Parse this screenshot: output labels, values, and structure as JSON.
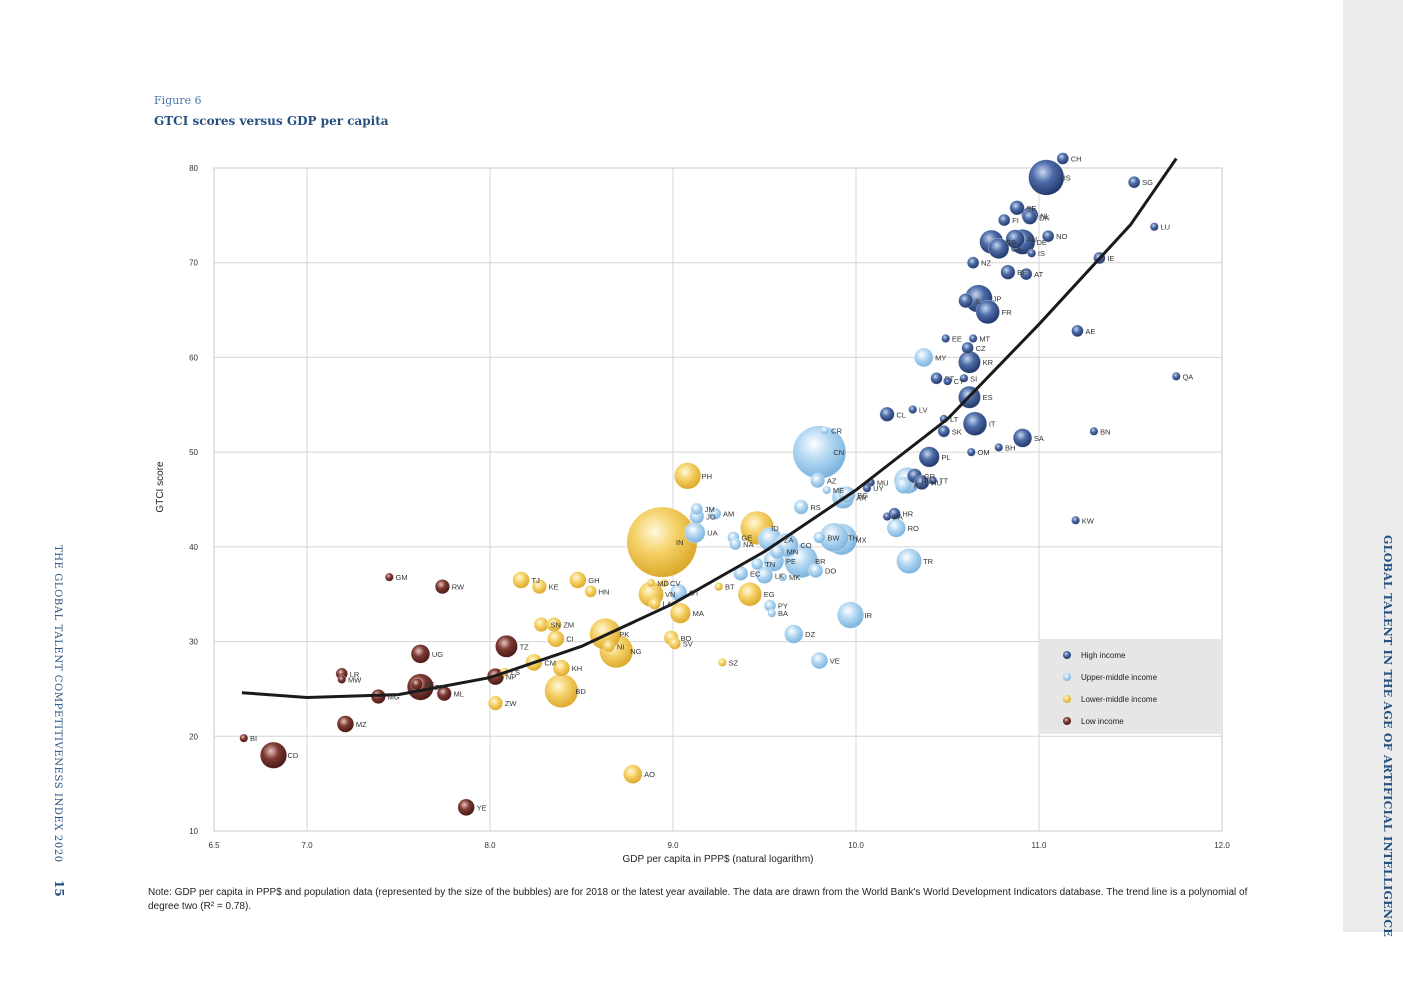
{
  "figure": {
    "label": "Figure 6",
    "title": "GTCI scores versus GDP per capita"
  },
  "note": "Note: GDP per capita in PPP$ and population data (represented by the size of the bubbles) are for 2018 or the latest year available. The data are drawn from the World Bank's World Development Indicators database. The trend line is a polynomial of degree two (R² = 0.78).",
  "side_title": "GLOBAL TALENT IN THE AGE OF ARTIFICIAL INTELLIGENCE",
  "running_head": "THE GLOBAL TALENT COMPETITIVENESS INDEX 2020",
  "page_number": "15",
  "chart_data": {
    "type": "scatter",
    "title": "GTCI scores versus GDP per capita",
    "xlabel": "GDP per capita in PPP$ (natural logarithm)",
    "ylabel": "GTCI score",
    "xlim": [
      6.5,
      12.0
    ],
    "ylim": [
      10,
      80
    ],
    "xticks": [
      "6.5",
      "7.0",
      "8.0",
      "9.0",
      "10.0",
      "11.0",
      "12.0"
    ],
    "xtick_values": [
      6.5,
      7.0,
      8.0,
      9.0,
      10.0,
      11.0,
      12.0
    ],
    "yticks": [
      "10",
      "20",
      "30",
      "40",
      "50",
      "60",
      "70",
      "80"
    ],
    "ytick_values": [
      10,
      20,
      30,
      40,
      50,
      60,
      70,
      80
    ],
    "grid": true,
    "legend_position": "bottom-right",
    "legend": [
      {
        "group": "high",
        "label": "High income"
      },
      {
        "group": "upper",
        "label": "Upper-middle income"
      },
      {
        "group": "lower",
        "label": "Lower-middle income"
      },
      {
        "group": "low",
        "label": "Low income"
      }
    ],
    "colors": {
      "high": "#2f4f8e",
      "upper": "#9ccaec",
      "lower": "#f2c84f",
      "low": "#6b2a25",
      "trend": "#1a1a1a"
    },
    "trend": {
      "type": "polynomial",
      "degree": 2,
      "r2": 0.78,
      "points": [
        [
          6.65,
          24.6
        ],
        [
          7.0,
          24.1
        ],
        [
          7.5,
          24.4
        ],
        [
          8.0,
          26.2
        ],
        [
          8.5,
          29.5
        ],
        [
          9.0,
          34.0
        ],
        [
          9.5,
          39.5
        ],
        [
          10.0,
          46.0
        ],
        [
          10.5,
          53.5
        ],
        [
          11.0,
          63.5
        ],
        [
          11.5,
          74.0
        ],
        [
          11.75,
          81.0
        ]
      ]
    },
    "points": [
      {
        "code": "CH",
        "x": 11.13,
        "y": 81.0,
        "group": "high",
        "size": 2
      },
      {
        "code": "US",
        "x": 11.04,
        "y": 79.0,
        "group": "high",
        "size": 18
      },
      {
        "code": "SG",
        "x": 11.52,
        "y": 78.5,
        "group": "high",
        "size": 2
      },
      {
        "code": "SE",
        "x": 10.88,
        "y": 75.8,
        "group": "high",
        "size": 3
      },
      {
        "code": "NL",
        "x": 10.95,
        "y": 75.0,
        "group": "high",
        "size": 4
      },
      {
        "code": "DK",
        "x": 10.95,
        "y": 74.8,
        "group": "high",
        "size": 3
      },
      {
        "code": "FI",
        "x": 10.81,
        "y": 74.5,
        "group": "high",
        "size": 2
      },
      {
        "code": "LU",
        "x": 11.63,
        "y": 73.8,
        "group": "high",
        "size": 1
      },
      {
        "code": "NO",
        "x": 11.05,
        "y": 72.8,
        "group": "high",
        "size": 2
      },
      {
        "code": "GB",
        "x": 10.74,
        "y": 72.2,
        "group": "high",
        "size": 8
      },
      {
        "code": "DE",
        "x": 10.91,
        "y": 72.2,
        "group": "high",
        "size": 9
      },
      {
        "code": "AU",
        "x": 10.87,
        "y": 72.5,
        "group": "high",
        "size": 5
      },
      {
        "code": "CA",
        "x": 10.78,
        "y": 71.5,
        "group": "high",
        "size": 6
      },
      {
        "code": "IS",
        "x": 10.96,
        "y": 71.0,
        "group": "high",
        "size": 1
      },
      {
        "code": "IE",
        "x": 11.33,
        "y": 70.5,
        "group": "high",
        "size": 2
      },
      {
        "code": "NZ",
        "x": 10.64,
        "y": 70.0,
        "group": "high",
        "size": 2
      },
      {
        "code": "BE",
        "x": 10.83,
        "y": 69.0,
        "group": "high",
        "size": 3
      },
      {
        "code": "AT",
        "x": 10.93,
        "y": 68.8,
        "group": "high",
        "size": 2
      },
      {
        "code": "JP",
        "x": 10.67,
        "y": 66.2,
        "group": "high",
        "size": 11
      },
      {
        "code": "IL",
        "x": 10.6,
        "y": 66.0,
        "group": "high",
        "size": 3
      },
      {
        "code": "FR",
        "x": 10.72,
        "y": 64.8,
        "group": "high",
        "size": 8
      },
      {
        "code": "AE",
        "x": 11.21,
        "y": 62.8,
        "group": "high",
        "size": 2
      },
      {
        "code": "EE",
        "x": 10.49,
        "y": 62.0,
        "group": "high",
        "size": 1
      },
      {
        "code": "MT",
        "x": 10.64,
        "y": 62.0,
        "group": "high",
        "size": 1
      },
      {
        "code": "CZ",
        "x": 10.61,
        "y": 61.0,
        "group": "high",
        "size": 2
      },
      {
        "code": "KR",
        "x": 10.62,
        "y": 59.5,
        "group": "high",
        "size": 7
      },
      {
        "code": "SI",
        "x": 10.59,
        "y": 57.8,
        "group": "high",
        "size": 1
      },
      {
        "code": "PT",
        "x": 10.44,
        "y": 57.8,
        "group": "high",
        "size": 2
      },
      {
        "code": "CY",
        "x": 10.5,
        "y": 57.5,
        "group": "high",
        "size": 1
      },
      {
        "code": "QA",
        "x": 11.75,
        "y": 58.0,
        "group": "high",
        "size": 1
      },
      {
        "code": "ES",
        "x": 10.62,
        "y": 55.8,
        "group": "high",
        "size": 7
      },
      {
        "code": "CL",
        "x": 10.17,
        "y": 54.0,
        "group": "high",
        "size": 3
      },
      {
        "code": "LV",
        "x": 10.31,
        "y": 54.5,
        "group": "high",
        "size": 1
      },
      {
        "code": "LT",
        "x": 10.48,
        "y": 53.5,
        "group": "high",
        "size": 1
      },
      {
        "code": "SK",
        "x": 10.48,
        "y": 52.2,
        "group": "high",
        "size": 2
      },
      {
        "code": "IT",
        "x": 10.65,
        "y": 53.0,
        "group": "high",
        "size": 8
      },
      {
        "code": "SA",
        "x": 10.91,
        "y": 51.5,
        "group": "high",
        "size": 5
      },
      {
        "code": "BN",
        "x": 11.3,
        "y": 52.2,
        "group": "high",
        "size": 1
      },
      {
        "code": "BH",
        "x": 10.78,
        "y": 50.5,
        "group": "high",
        "size": 1
      },
      {
        "code": "OM",
        "x": 10.63,
        "y": 50.0,
        "group": "high",
        "size": 1
      },
      {
        "code": "PL",
        "x": 10.4,
        "y": 49.5,
        "group": "high",
        "size": 6
      },
      {
        "code": "KW",
        "x": 11.2,
        "y": 42.8,
        "group": "high",
        "size": 1
      },
      {
        "code": "MU",
        "x": 10.08,
        "y": 46.8,
        "group": "high",
        "size": 1
      },
      {
        "code": "UY",
        "x": 10.06,
        "y": 46.2,
        "group": "high",
        "size": 1
      },
      {
        "code": "RU",
        "x": 10.28,
        "y": 47.0,
        "group": "upper",
        "size": 10
      },
      {
        "code": "GR",
        "x": 10.32,
        "y": 47.5,
        "group": "high",
        "size": 3
      },
      {
        "code": "HU",
        "x": 10.36,
        "y": 46.8,
        "group": "high",
        "size": 3
      },
      {
        "code": "TT",
        "x": 10.42,
        "y": 47.0,
        "group": "high",
        "size": 1
      },
      {
        "code": "PA",
        "x": 10.17,
        "y": 43.2,
        "group": "high",
        "size": 1
      },
      {
        "code": "HR",
        "x": 10.21,
        "y": 43.5,
        "group": "high",
        "size": 2
      },
      {
        "code": "CR",
        "x": 9.83,
        "y": 52.3,
        "group": "upper",
        "size": 1
      },
      {
        "code": "CN",
        "x": 9.8,
        "y": 50.0,
        "group": "upper",
        "size": 40
      },
      {
        "code": "KZ",
        "x": 10.26,
        "y": 46.5,
        "group": "upper",
        "size": 4
      },
      {
        "code": "AZ",
        "x": 9.79,
        "y": 47.0,
        "group": "upper",
        "size": 3
      },
      {
        "code": "ME",
        "x": 9.84,
        "y": 46.0,
        "group": "upper",
        "size": 1
      },
      {
        "code": "BG",
        "x": 9.95,
        "y": 45.5,
        "group": "upper",
        "size": 4
      },
      {
        "code": "AR",
        "x": 9.93,
        "y": 45.2,
        "group": "upper",
        "size": 7
      },
      {
        "code": "RS",
        "x": 9.7,
        "y": 44.2,
        "group": "upper",
        "size": 3
      },
      {
        "code": "MY",
        "x": 10.37,
        "y": 60.0,
        "group": "upper",
        "size": 5
      },
      {
        "code": "RO",
        "x": 10.22,
        "y": 42.0,
        "group": "upper",
        "size": 5
      },
      {
        "code": "TH",
        "x": 9.88,
        "y": 41.0,
        "group": "upper",
        "size": 12
      },
      {
        "code": "BW",
        "x": 9.8,
        "y": 41.0,
        "group": "upper",
        "size": 2
      },
      {
        "code": "MX",
        "x": 9.92,
        "y": 40.8,
        "group": "upper",
        "size": 14
      },
      {
        "code": "JM",
        "x": 9.13,
        "y": 44.0,
        "group": "upper",
        "size": 2
      },
      {
        "code": "AM",
        "x": 9.23,
        "y": 43.5,
        "group": "upper",
        "size": 2
      },
      {
        "code": "JO",
        "x": 9.13,
        "y": 43.2,
        "group": "upper",
        "size": 3
      },
      {
        "code": "UA",
        "x": 9.12,
        "y": 41.5,
        "group": "upper",
        "size": 6
      },
      {
        "code": "GE",
        "x": 9.33,
        "y": 41.0,
        "group": "upper",
        "size": 2
      },
      {
        "code": "NA",
        "x": 9.34,
        "y": 40.3,
        "group": "upper",
        "size": 2
      },
      {
        "code": "ZA",
        "x": 9.53,
        "y": 40.8,
        "group": "upper",
        "size": 8
      },
      {
        "code": "MN",
        "x": 9.57,
        "y": 39.5,
        "group": "upper",
        "size": 3
      },
      {
        "code": "CO",
        "x": 9.62,
        "y": 40.2,
        "group": "upper",
        "size": 8
      },
      {
        "code": "PE",
        "x": 9.55,
        "y": 38.5,
        "group": "upper",
        "size": 6
      },
      {
        "code": "BR",
        "x": 9.7,
        "y": 38.5,
        "group": "upper",
        "size": 16
      },
      {
        "code": "TN",
        "x": 9.46,
        "y": 38.2,
        "group": "upper",
        "size": 2
      },
      {
        "code": "EC",
        "x": 9.37,
        "y": 37.2,
        "group": "upper",
        "size": 3
      },
      {
        "code": "LK",
        "x": 9.5,
        "y": 37.0,
        "group": "upper",
        "size": 4
      },
      {
        "code": "MK",
        "x": 9.6,
        "y": 36.8,
        "group": "upper",
        "size": 1
      },
      {
        "code": "DO",
        "x": 9.78,
        "y": 37.5,
        "group": "upper",
        "size": 3
      },
      {
        "code": "GT",
        "x": 9.03,
        "y": 35.2,
        "group": "upper",
        "size": 4
      },
      {
        "code": "PY",
        "x": 9.53,
        "y": 33.8,
        "group": "upper",
        "size": 2
      },
      {
        "code": "BA",
        "x": 9.54,
        "y": 33.0,
        "group": "upper",
        "size": 1
      },
      {
        "code": "IR",
        "x": 9.97,
        "y": 32.8,
        "group": "upper",
        "size": 10
      },
      {
        "code": "DZ",
        "x": 9.66,
        "y": 30.8,
        "group": "upper",
        "size": 5
      },
      {
        "code": "TR",
        "x": 10.29,
        "y": 38.5,
        "group": "upper",
        "size": 9
      },
      {
        "code": "VE",
        "x": 9.8,
        "y": 28.0,
        "group": "upper",
        "size": 4
      },
      {
        "code": "PH",
        "x": 9.08,
        "y": 47.5,
        "group": "lower",
        "size": 10
      },
      {
        "code": "ID",
        "x": 9.46,
        "y": 42.0,
        "group": "lower",
        "size": 16
      },
      {
        "code": "IN",
        "x": 8.94,
        "y": 40.5,
        "group": "lower",
        "size": 70
      },
      {
        "code": "MD",
        "x": 8.88,
        "y": 36.2,
        "group": "lower",
        "size": 1
      },
      {
        "code": "CV",
        "x": 8.95,
        "y": 36.2,
        "group": "lower",
        "size": 1
      },
      {
        "code": "VN",
        "x": 8.88,
        "y": 35.0,
        "group": "lower",
        "size": 9
      },
      {
        "code": "LA",
        "x": 8.9,
        "y": 34.0,
        "group": "lower",
        "size": 2
      },
      {
        "code": "MA",
        "x": 9.04,
        "y": 33.0,
        "group": "lower",
        "size": 6
      },
      {
        "code": "BT",
        "x": 9.25,
        "y": 35.8,
        "group": "lower",
        "size": 1
      },
      {
        "code": "EG",
        "x": 9.42,
        "y": 35.0,
        "group": "lower",
        "size": 8
      },
      {
        "code": "TJ",
        "x": 8.17,
        "y": 36.5,
        "group": "lower",
        "size": 4
      },
      {
        "code": "KE",
        "x": 8.27,
        "y": 35.8,
        "group": "lower",
        "size": 3
      },
      {
        "code": "GH",
        "x": 8.48,
        "y": 36.5,
        "group": "lower",
        "size": 4
      },
      {
        "code": "HN",
        "x": 8.55,
        "y": 35.3,
        "group": "lower",
        "size": 2
      },
      {
        "code": "SN",
        "x": 8.28,
        "y": 31.8,
        "group": "lower",
        "size": 3
      },
      {
        "code": "ZM",
        "x": 8.35,
        "y": 31.8,
        "group": "lower",
        "size": 3
      },
      {
        "code": "CI",
        "x": 8.36,
        "y": 30.3,
        "group": "lower",
        "size": 4
      },
      {
        "code": "PK",
        "x": 8.63,
        "y": 30.8,
        "group": "lower",
        "size": 14
      },
      {
        "code": "NI",
        "x": 8.65,
        "y": 29.5,
        "group": "lower",
        "size": 2
      },
      {
        "code": "NG",
        "x": 8.69,
        "y": 29.0,
        "group": "lower",
        "size": 16
      },
      {
        "code": "BO",
        "x": 8.99,
        "y": 30.4,
        "group": "lower",
        "size": 3
      },
      {
        "code": "SV",
        "x": 9.01,
        "y": 29.8,
        "group": "lower",
        "size": 2
      },
      {
        "code": "CM",
        "x": 8.24,
        "y": 27.8,
        "group": "lower",
        "size": 4
      },
      {
        "code": "KH",
        "x": 8.39,
        "y": 27.2,
        "group": "lower",
        "size": 4
      },
      {
        "code": "LS",
        "x": 8.08,
        "y": 26.8,
        "group": "lower",
        "size": 1
      },
      {
        "code": "BD",
        "x": 8.39,
        "y": 24.8,
        "group": "lower",
        "size": 16
      },
      {
        "code": "ZW",
        "x": 8.03,
        "y": 23.5,
        "group": "lower",
        "size": 3
      },
      {
        "code": "SZ",
        "x": 9.27,
        "y": 27.8,
        "group": "lower",
        "size": 1
      },
      {
        "code": "AO",
        "x": 8.78,
        "y": 16.0,
        "group": "lower",
        "size": 5
      },
      {
        "code": "GM",
        "x": 7.45,
        "y": 36.8,
        "group": "low",
        "size": 1
      },
      {
        "code": "RW",
        "x": 7.74,
        "y": 35.8,
        "group": "low",
        "size": 3
      },
      {
        "code": "TZ",
        "x": 8.09,
        "y": 29.5,
        "group": "low",
        "size": 7
      },
      {
        "code": "UG",
        "x": 7.62,
        "y": 28.7,
        "group": "low",
        "size": 5
      },
      {
        "code": "NP",
        "x": 8.03,
        "y": 26.3,
        "group": "low",
        "size": 4
      },
      {
        "code": "LR",
        "x": 7.19,
        "y": 26.6,
        "group": "low",
        "size": 2
      },
      {
        "code": "MW",
        "x": 7.19,
        "y": 26.0,
        "group": "low",
        "size": 1
      },
      {
        "code": "ET",
        "x": 7.62,
        "y": 25.2,
        "group": "low",
        "size": 10
      },
      {
        "code": "BF",
        "x": 7.6,
        "y": 25.5,
        "group": "low",
        "size": 2
      },
      {
        "code": "ML",
        "x": 7.75,
        "y": 24.5,
        "group": "low",
        "size": 3
      },
      {
        "code": "MG",
        "x": 7.39,
        "y": 24.2,
        "group": "low",
        "size": 3
      },
      {
        "code": "MZ",
        "x": 7.21,
        "y": 21.3,
        "group": "low",
        "size": 4
      },
      {
        "code": "BI",
        "x": 6.66,
        "y": 19.8,
        "group": "low",
        "size": 1
      },
      {
        "code": "CD",
        "x": 6.82,
        "y": 18.0,
        "group": "low",
        "size": 10
      },
      {
        "code": "YE",
        "x": 7.87,
        "y": 12.5,
        "group": "low",
        "size": 4
      }
    ]
  }
}
